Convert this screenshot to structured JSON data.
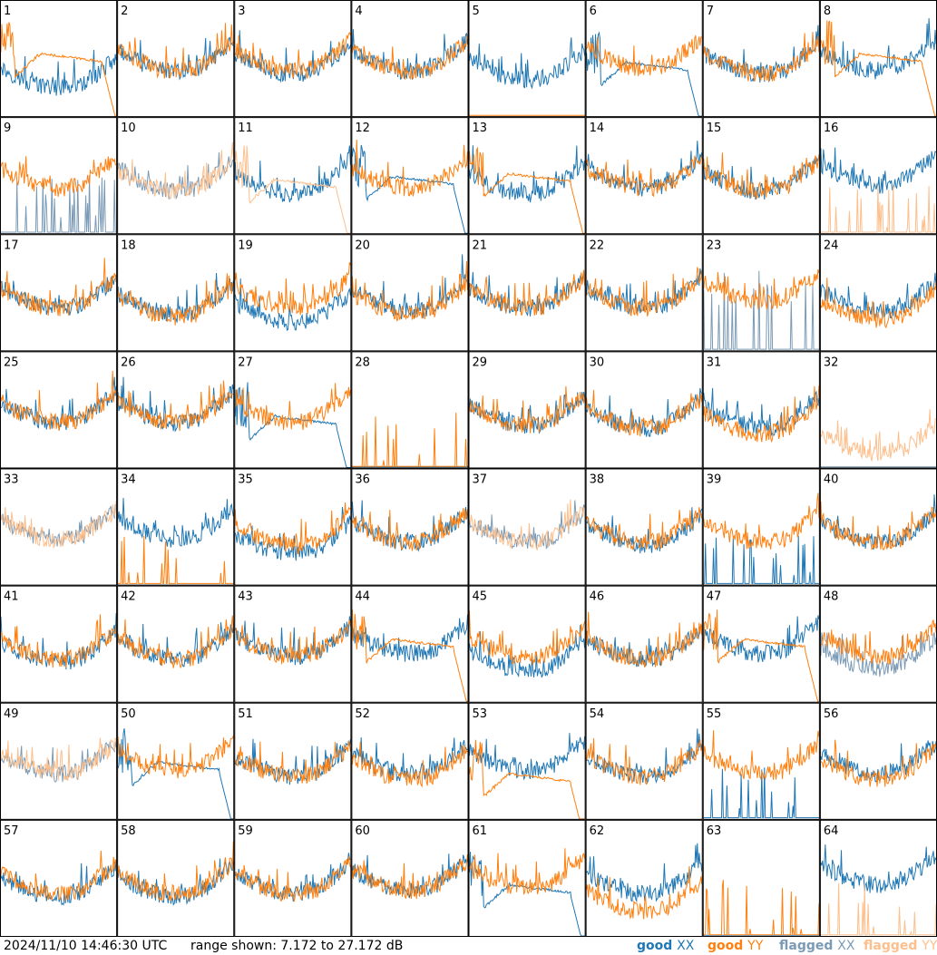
{
  "footer": {
    "timestamp": "2024/11/10 14:46:30 UTC",
    "range_text": "range shown: 7.172 to 27.172 dB"
  },
  "colors": {
    "good_xx": "#1f77b4",
    "good_yy": "#ff7f0e",
    "flagged_xx": "#7a9ab5",
    "flagged_yy": "#fdbf8c"
  },
  "chart_data": {
    "type": "line",
    "grid": "8x8 small multiples, one panel per antenna",
    "y_range_db": [
      7.172,
      27.172
    ],
    "legend_placement": "bottom-right",
    "legend": [
      {
        "key": "good_xx",
        "label": "good",
        "pol": "XX"
      },
      {
        "key": "good_yy",
        "label": "good",
        "pol": "YY"
      },
      {
        "key": "flagged_xx",
        "label": "flagged",
        "pol": "XX"
      },
      {
        "key": "flagged_yy",
        "label": "flagged",
        "pol": "YY"
      }
    ],
    "panels": [
      {
        "id": "1",
        "xx": {
          "state": "good",
          "pattern": "normal",
          "level": 15.5
        },
        "yy": {
          "state": "good",
          "pattern": "bandpass",
          "level": 18.0
        }
      },
      {
        "id": "2",
        "xx": {
          "state": "good",
          "pattern": "normal",
          "level": 18.5
        },
        "yy": {
          "state": "good",
          "pattern": "normal",
          "level": 18.5
        }
      },
      {
        "id": "3",
        "xx": {
          "state": "good",
          "pattern": "normal",
          "level": 18.0
        },
        "yy": {
          "state": "good",
          "pattern": "normal",
          "level": 18.5
        }
      },
      {
        "id": "4",
        "xx": {
          "state": "good",
          "pattern": "normal",
          "level": 18.5
        },
        "yy": {
          "state": "good",
          "pattern": "normal",
          "level": 18.5
        }
      },
      {
        "id": "5",
        "xx": {
          "state": "good",
          "pattern": "normal",
          "level": 17.0
        },
        "yy": {
          "state": "good",
          "pattern": "flat",
          "level": 7.3
        }
      },
      {
        "id": "6",
        "xx": {
          "state": "good",
          "pattern": "bandpass",
          "level": 16.5
        },
        "yy": {
          "state": "good",
          "pattern": "normal",
          "level": 19.0
        }
      },
      {
        "id": "7",
        "xx": {
          "state": "good",
          "pattern": "normal",
          "level": 18.0
        },
        "yy": {
          "state": "good",
          "pattern": "normal",
          "level": 18.0
        }
      },
      {
        "id": "8",
        "xx": {
          "state": "good",
          "pattern": "normal",
          "level": 18.5
        },
        "yy": {
          "state": "good",
          "pattern": "bandpass",
          "level": 18.0
        }
      },
      {
        "id": "9",
        "xx": {
          "state": "flagged",
          "pattern": "spiky",
          "level": 9.0
        },
        "yy": {
          "state": "good",
          "pattern": "normal",
          "level": 18.5
        }
      },
      {
        "id": "10",
        "xx": {
          "state": "flagged",
          "pattern": "normal",
          "level": 18.0
        },
        "yy": {
          "state": "flagged",
          "pattern": "normal",
          "level": 18.0
        }
      },
      {
        "id": "11",
        "xx": {
          "state": "good",
          "pattern": "normal",
          "level": 17.5
        },
        "yy": {
          "state": "flagged",
          "pattern": "bandpass",
          "level": 16.5
        }
      },
      {
        "id": "12",
        "xx": {
          "state": "good",
          "pattern": "bandpass",
          "level": 17.0
        },
        "yy": {
          "state": "good",
          "pattern": "normal",
          "level": 18.5
        }
      },
      {
        "id": "13",
        "xx": {
          "state": "good",
          "pattern": "normal",
          "level": 17.5
        },
        "yy": {
          "state": "good",
          "pattern": "bandpass",
          "level": 17.5
        }
      },
      {
        "id": "14",
        "xx": {
          "state": "good",
          "pattern": "normal",
          "level": 18.5
        },
        "yy": {
          "state": "good",
          "pattern": "normal",
          "level": 18.5
        }
      },
      {
        "id": "15",
        "xx": {
          "state": "good",
          "pattern": "normal",
          "level": 18.0
        },
        "yy": {
          "state": "good",
          "pattern": "normal",
          "level": 18.0
        }
      },
      {
        "id": "16",
        "xx": {
          "state": "good",
          "pattern": "normal",
          "level": 19.0
        },
        "yy": {
          "state": "flagged",
          "pattern": "spiky",
          "level": 8.0
        }
      },
      {
        "id": "17",
        "xx": {
          "state": "good",
          "pattern": "normal",
          "level": 18.0
        },
        "yy": {
          "state": "good",
          "pattern": "normal",
          "level": 18.0
        }
      },
      {
        "id": "18",
        "xx": {
          "state": "good",
          "pattern": "normal",
          "level": 17.0
        },
        "yy": {
          "state": "good",
          "pattern": "normal",
          "level": 16.5
        }
      },
      {
        "id": "19",
        "xx": {
          "state": "good",
          "pattern": "normal",
          "level": 15.5
        },
        "yy": {
          "state": "good",
          "pattern": "normal",
          "level": 18.0
        }
      },
      {
        "id": "20",
        "xx": {
          "state": "good",
          "pattern": "normal",
          "level": 17.5
        },
        "yy": {
          "state": "good",
          "pattern": "normal",
          "level": 17.0
        }
      },
      {
        "id": "21",
        "xx": {
          "state": "good",
          "pattern": "normal",
          "level": 18.0
        },
        "yy": {
          "state": "good",
          "pattern": "normal",
          "level": 18.0
        }
      },
      {
        "id": "22",
        "xx": {
          "state": "good",
          "pattern": "normal",
          "level": 18.0
        },
        "yy": {
          "state": "good",
          "pattern": "normal",
          "level": 18.0
        }
      },
      {
        "id": "23",
        "xx": {
          "state": "flagged",
          "pattern": "spiky",
          "level": 12.0
        },
        "yy": {
          "state": "good",
          "pattern": "normal",
          "level": 19.0
        }
      },
      {
        "id": "24",
        "xx": {
          "state": "good",
          "pattern": "normal",
          "level": 17.5
        },
        "yy": {
          "state": "good",
          "pattern": "normal",
          "level": 16.0
        }
      },
      {
        "id": "25",
        "xx": {
          "state": "good",
          "pattern": "normal",
          "level": 18.5
        },
        "yy": {
          "state": "good",
          "pattern": "normal",
          "level": 18.5
        }
      },
      {
        "id": "26",
        "xx": {
          "state": "good",
          "pattern": "normal",
          "level": 18.5
        },
        "yy": {
          "state": "good",
          "pattern": "normal",
          "level": 18.5
        }
      },
      {
        "id": "27",
        "xx": {
          "state": "good",
          "pattern": "bandpass",
          "level": 16.0
        },
        "yy": {
          "state": "good",
          "pattern": "normal",
          "level": 18.5
        }
      },
      {
        "id": "28",
        "xx": {
          "state": "good",
          "pattern": "flat",
          "level": 7.3
        },
        "yy": {
          "state": "good",
          "pattern": "spiky",
          "level": 8.0
        }
      },
      {
        "id": "29",
        "xx": {
          "state": "good",
          "pattern": "normal",
          "level": 18.0
        },
        "yy": {
          "state": "good",
          "pattern": "normal",
          "level": 18.0
        }
      },
      {
        "id": "30",
        "xx": {
          "state": "good",
          "pattern": "normal",
          "level": 17.5
        },
        "yy": {
          "state": "good",
          "pattern": "normal",
          "level": 17.5
        }
      },
      {
        "id": "31",
        "xx": {
          "state": "good",
          "pattern": "normal",
          "level": 17.5
        },
        "yy": {
          "state": "good",
          "pattern": "normal",
          "level": 16.5
        }
      },
      {
        "id": "32",
        "xx": {
          "state": "flagged",
          "pattern": "flat",
          "level": 7.3
        },
        "yy": {
          "state": "flagged",
          "pattern": "normal",
          "level": 13.0
        }
      },
      {
        "id": "33",
        "xx": {
          "state": "flagged",
          "pattern": "normal",
          "level": 18.5
        },
        "yy": {
          "state": "flagged",
          "pattern": "normal",
          "level": 18.5
        }
      },
      {
        "id": "34",
        "xx": {
          "state": "good",
          "pattern": "normal",
          "level": 18.5
        },
        "yy": {
          "state": "good",
          "pattern": "spiky",
          "level": 8.0
        }
      },
      {
        "id": "35",
        "xx": {
          "state": "good",
          "pattern": "normal",
          "level": 16.0
        },
        "yy": {
          "state": "good",
          "pattern": "normal",
          "level": 17.5
        }
      },
      {
        "id": "36",
        "xx": {
          "state": "good",
          "pattern": "normal",
          "level": 18.0
        },
        "yy": {
          "state": "good",
          "pattern": "normal",
          "level": 18.0
        }
      },
      {
        "id": "37",
        "xx": {
          "state": "flagged",
          "pattern": "normal",
          "level": 18.0
        },
        "yy": {
          "state": "flagged",
          "pattern": "normal",
          "level": 18.0
        }
      },
      {
        "id": "38",
        "xx": {
          "state": "good",
          "pattern": "normal",
          "level": 17.5
        },
        "yy": {
          "state": "good",
          "pattern": "normal",
          "level": 18.0
        }
      },
      {
        "id": "39",
        "xx": {
          "state": "good",
          "pattern": "spiky",
          "level": 8.0
        },
        "yy": {
          "state": "good",
          "pattern": "normal",
          "level": 18.0
        }
      },
      {
        "id": "40",
        "xx": {
          "state": "good",
          "pattern": "normal",
          "level": 18.0
        },
        "yy": {
          "state": "good",
          "pattern": "normal",
          "level": 18.0
        }
      },
      {
        "id": "41",
        "xx": {
          "state": "good",
          "pattern": "normal",
          "level": 17.5
        },
        "yy": {
          "state": "good",
          "pattern": "normal",
          "level": 18.0
        }
      },
      {
        "id": "42",
        "xx": {
          "state": "good",
          "pattern": "normal",
          "level": 18.0
        },
        "yy": {
          "state": "good",
          "pattern": "normal",
          "level": 18.0
        }
      },
      {
        "id": "43",
        "xx": {
          "state": "good",
          "pattern": "normal",
          "level": 18.5
        },
        "yy": {
          "state": "good",
          "pattern": "normal",
          "level": 18.5
        }
      },
      {
        "id": "44",
        "xx": {
          "state": "good",
          "pattern": "normal",
          "level": 19.0
        },
        "yy": {
          "state": "good",
          "pattern": "bandpass",
          "level": 18.0
        }
      },
      {
        "id": "45",
        "xx": {
          "state": "good",
          "pattern": "normal",
          "level": 16.0
        },
        "yy": {
          "state": "good",
          "pattern": "normal",
          "level": 18.5
        }
      },
      {
        "id": "46",
        "xx": {
          "state": "good",
          "pattern": "normal",
          "level": 18.0
        },
        "yy": {
          "state": "good",
          "pattern": "normal",
          "level": 18.0
        }
      },
      {
        "id": "47",
        "xx": {
          "state": "good",
          "pattern": "normal",
          "level": 19.0
        },
        "yy": {
          "state": "good",
          "pattern": "bandpass",
          "level": 18.0
        }
      },
      {
        "id": "48",
        "xx": {
          "state": "flagged",
          "pattern": "normal",
          "level": 16.5
        },
        "yy": {
          "state": "good",
          "pattern": "normal",
          "level": 18.5
        }
      },
      {
        "id": "49",
        "xx": {
          "state": "flagged",
          "pattern": "normal",
          "level": 18.5
        },
        "yy": {
          "state": "flagged",
          "pattern": "normal",
          "level": 18.5
        }
      },
      {
        "id": "50",
        "xx": {
          "state": "good",
          "pattern": "bandpass",
          "level": 17.0
        },
        "yy": {
          "state": "good",
          "pattern": "normal",
          "level": 19.0
        }
      },
      {
        "id": "51",
        "xx": {
          "state": "good",
          "pattern": "normal",
          "level": 18.0
        },
        "yy": {
          "state": "good",
          "pattern": "normal",
          "level": 18.0
        }
      },
      {
        "id": "52",
        "xx": {
          "state": "good",
          "pattern": "normal",
          "level": 18.5
        },
        "yy": {
          "state": "good",
          "pattern": "normal",
          "level": 17.5
        }
      },
      {
        "id": "53",
        "xx": {
          "state": "good",
          "pattern": "normal",
          "level": 19.0
        },
        "yy": {
          "state": "good",
          "pattern": "bandpass",
          "level": 15.0
        }
      },
      {
        "id": "54",
        "xx": {
          "state": "good",
          "pattern": "normal",
          "level": 18.0
        },
        "yy": {
          "state": "good",
          "pattern": "normal",
          "level": 18.0
        }
      },
      {
        "id": "55",
        "xx": {
          "state": "good",
          "pattern": "spiky",
          "level": 8.5
        },
        "yy": {
          "state": "good",
          "pattern": "normal",
          "level": 18.5
        }
      },
      {
        "id": "56",
        "xx": {
          "state": "good",
          "pattern": "normal",
          "level": 18.5
        },
        "yy": {
          "state": "good",
          "pattern": "normal",
          "level": 17.5
        }
      },
      {
        "id": "57",
        "xx": {
          "state": "good",
          "pattern": "normal",
          "level": 17.5
        },
        "yy": {
          "state": "good",
          "pattern": "normal",
          "level": 18.0
        }
      },
      {
        "id": "58",
        "xx": {
          "state": "good",
          "pattern": "normal",
          "level": 17.5
        },
        "yy": {
          "state": "good",
          "pattern": "normal",
          "level": 18.0
        }
      },
      {
        "id": "59",
        "xx": {
          "state": "good",
          "pattern": "normal",
          "level": 18.0
        },
        "yy": {
          "state": "good",
          "pattern": "normal",
          "level": 18.0
        }
      },
      {
        "id": "60",
        "xx": {
          "state": "good",
          "pattern": "normal",
          "level": 18.5
        },
        "yy": {
          "state": "good",
          "pattern": "normal",
          "level": 18.5
        }
      },
      {
        "id": "61",
        "xx": {
          "state": "good",
          "pattern": "bandpass",
          "level": 16.0
        },
        "yy": {
          "state": "good",
          "pattern": "normal",
          "level": 19.0
        }
      },
      {
        "id": "62",
        "xx": {
          "state": "good",
          "pattern": "normal",
          "level": 18.0
        },
        "yy": {
          "state": "good",
          "pattern": "normal",
          "level": 15.0
        }
      },
      {
        "id": "63",
        "xx": {
          "state": "good",
          "pattern": "flat",
          "level": 7.3
        },
        "yy": {
          "state": "good",
          "pattern": "spiky",
          "level": 8.0
        }
      },
      {
        "id": "64",
        "xx": {
          "state": "good",
          "pattern": "normal",
          "level": 19.5
        },
        "yy": {
          "state": "flagged",
          "pattern": "spiky",
          "level": 7.5
        }
      }
    ]
  }
}
